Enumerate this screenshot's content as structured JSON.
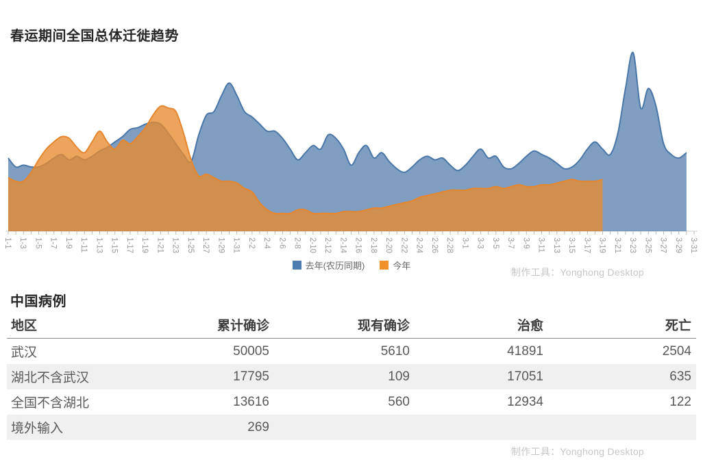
{
  "chart": {
    "title": "春运期间全国总体迁徙趋势",
    "watermark": "制作工具：Yonghong Desktop",
    "legend": [
      {
        "label": "去年(农历同期)",
        "color": "#4d7cb0"
      },
      {
        "label": "今年",
        "color": "#f0912c"
      }
    ]
  },
  "chart_data": {
    "type": "area",
    "title": "春运期间全国总体迁徙趋势",
    "xlabel": "",
    "ylabel": "",
    "ylim": [
      0,
      100
    ],
    "grid": false,
    "y_axis_visible": false,
    "legend_position": "bottom-center",
    "x": [
      "1-1",
      "1-2",
      "1-3",
      "1-4",
      "1-5",
      "1-6",
      "1-7",
      "1-8",
      "1-9",
      "1-10",
      "1-11",
      "1-12",
      "1-13",
      "1-14",
      "1-15",
      "1-16",
      "1-17",
      "1-18",
      "1-19",
      "1-20",
      "1-21",
      "1-22",
      "1-23",
      "1-24",
      "1-25",
      "1-26",
      "1-27",
      "1-28",
      "1-29",
      "1-30",
      "1-31",
      "2-1",
      "2-2",
      "2-3",
      "2-4",
      "2-5",
      "2-6",
      "2-7",
      "2-8",
      "2-9",
      "2-10",
      "2-11",
      "2-12",
      "2-13",
      "2-14",
      "2-15",
      "2-16",
      "2-17",
      "2-18",
      "2-19",
      "2-20",
      "2-21",
      "2-22",
      "2-23",
      "2-24",
      "2-25",
      "2-26",
      "2-27",
      "2-28",
      "2-29",
      "3-1",
      "3-2",
      "3-3",
      "3-4",
      "3-5",
      "3-6",
      "3-7",
      "3-8",
      "3-9",
      "3-10",
      "3-11",
      "3-12",
      "3-13",
      "3-14",
      "3-15",
      "3-16",
      "3-17",
      "3-18",
      "3-19",
      "3-20",
      "3-21",
      "3-22",
      "3-23",
      "3-24",
      "3-25",
      "3-26",
      "3-27",
      "3-28",
      "3-29",
      "3-30",
      "3-31"
    ],
    "x_tick_labels": [
      "1-1",
      "1-3",
      "1-5",
      "1-7",
      "1-9",
      "1-11",
      "1-13",
      "1-15",
      "1-17",
      "1-19",
      "1-21",
      "1-23",
      "1-25",
      "1-27",
      "1-29",
      "1-31",
      "2-2",
      "2-4",
      "2-6",
      "2-8",
      "2-10",
      "2-12",
      "2-14",
      "2-16",
      "2-18",
      "2-20",
      "2-22",
      "2-24",
      "2-26",
      "2-28",
      "3-1",
      "3-3",
      "3-5",
      "3-7",
      "3-9",
      "3-11",
      "3-13",
      "3-15",
      "3-17",
      "3-19",
      "3-21",
      "3-23",
      "3-25",
      "3-27",
      "3-29",
      "3-31"
    ],
    "series": [
      {
        "name": "去年(农历同期)",
        "line_color": "#4a76a8",
        "fill_color": "rgba(78,121,171,0.72)",
        "values": [
          41,
          36,
          37,
          36,
          36,
          38,
          41,
          43,
          40,
          42,
          40,
          42,
          45,
          47,
          50,
          53,
          57,
          58,
          60,
          61,
          60,
          55,
          49,
          43,
          39,
          54,
          65,
          67,
          76,
          83,
          76,
          67,
          64,
          60,
          56,
          56,
          52,
          46,
          40,
          44,
          48,
          46,
          54,
          52,
          46,
          37,
          44,
          48,
          41,
          44,
          39,
          35,
          33,
          36,
          40,
          42,
          40,
          41,
          37,
          34,
          37,
          42,
          46,
          41,
          42,
          36,
          35,
          38,
          42,
          45,
          43,
          41,
          38,
          35,
          36,
          40,
          46,
          50,
          46,
          43,
          55,
          80,
          100,
          69,
          80,
          70,
          49,
          43,
          41,
          44,
          null
        ]
      },
      {
        "name": "今年",
        "line_color": "#e5862e",
        "fill_color": "rgba(232,138,46,0.78)",
        "values": [
          30,
          28,
          28,
          33,
          40,
          46,
          50,
          53,
          52,
          47,
          44,
          50,
          56,
          50,
          46,
          51,
          49,
          53,
          58,
          65,
          70,
          69,
          67,
          55,
          40,
          31,
          32,
          30,
          28,
          28,
          27,
          24,
          22,
          16,
          12,
          10,
          10,
          10,
          12,
          12,
          10,
          10,
          10,
          10,
          11,
          11,
          11,
          12,
          13,
          13,
          14,
          15,
          16,
          17,
          19,
          20,
          21,
          22,
          23,
          23,
          23,
          24,
          24,
          24,
          25,
          24,
          25,
          26,
          25,
          25,
          26,
          26,
          27,
          28,
          29,
          28,
          28,
          28,
          29,
          null,
          null,
          null,
          null,
          null,
          null,
          null,
          null,
          null,
          null,
          null,
          null
        ]
      }
    ]
  },
  "cases_table": {
    "title": "中国病例",
    "watermark": "制作工具：Yonghong Desktop",
    "columns": [
      "地区",
      "累计确诊",
      "现有确诊",
      "治愈",
      "死亡"
    ],
    "rows": [
      [
        "武汉",
        "50005",
        "5610",
        "41891",
        "2504"
      ],
      [
        "湖北不含武汉",
        "17795",
        "109",
        "17051",
        "635"
      ],
      [
        "全国不含湖北",
        "13616",
        "560",
        "12934",
        "122"
      ],
      [
        "境外输入",
        "269",
        "",
        "",
        ""
      ]
    ]
  }
}
